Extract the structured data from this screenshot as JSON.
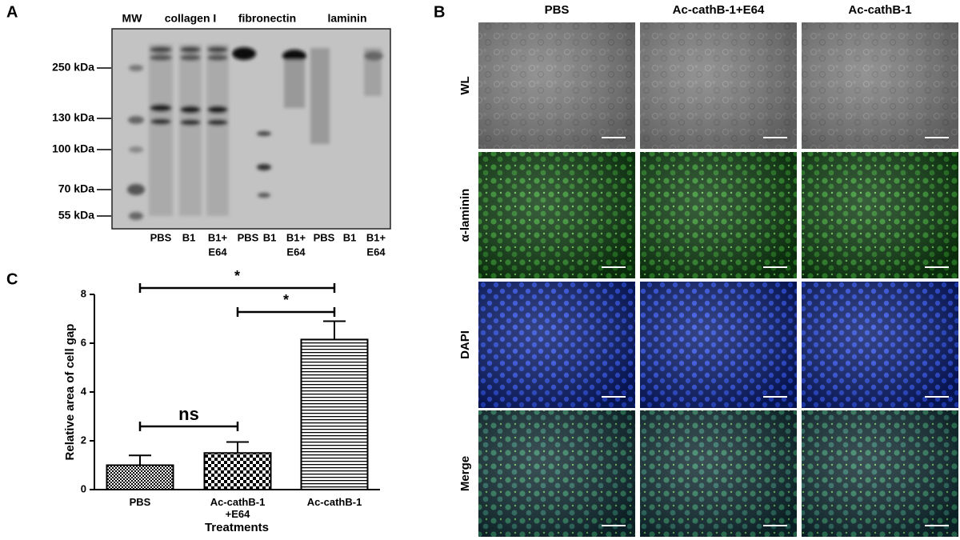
{
  "panel_a": {
    "label": "A",
    "mw": "MW",
    "groups": [
      "collagen I",
      "fibronectin",
      "laminin"
    ],
    "markers": [
      "250 kDa",
      "130 kDa",
      "100 kDa",
      "70 kDa",
      "55 kDa"
    ],
    "lanes": [
      [
        "PBS"
      ],
      [
        "B1"
      ],
      [
        "B1+",
        "E64"
      ],
      [
        "PBS"
      ],
      [
        "B1"
      ],
      [
        "B1+",
        "E64"
      ],
      [
        "PBS"
      ],
      [
        "B1"
      ],
      [
        "B1+",
        "E64"
      ]
    ]
  },
  "panel_b": {
    "label": "B",
    "columns": [
      "PBS",
      "Ac-cathB-1+E64",
      "Ac-cathB-1"
    ],
    "rows": [
      "WL",
      "α-laminin",
      "DAPI",
      "Merge"
    ]
  },
  "chart_data": {
    "type": "bar",
    "label": "C",
    "ylabel": "Relative area of cell gap",
    "xlabel": "Treatments",
    "categories": [
      "PBS",
      "Ac-cathB-1 +E64",
      "Ac-cathB-1"
    ],
    "values": [
      1.0,
      1.5,
      6.15
    ],
    "errors": [
      0.4,
      0.45,
      0.75
    ],
    "ylim": [
      0,
      8
    ],
    "yticks": [
      0,
      2,
      4,
      6,
      8
    ],
    "annotations": [
      "*",
      "*",
      "ns"
    ]
  }
}
